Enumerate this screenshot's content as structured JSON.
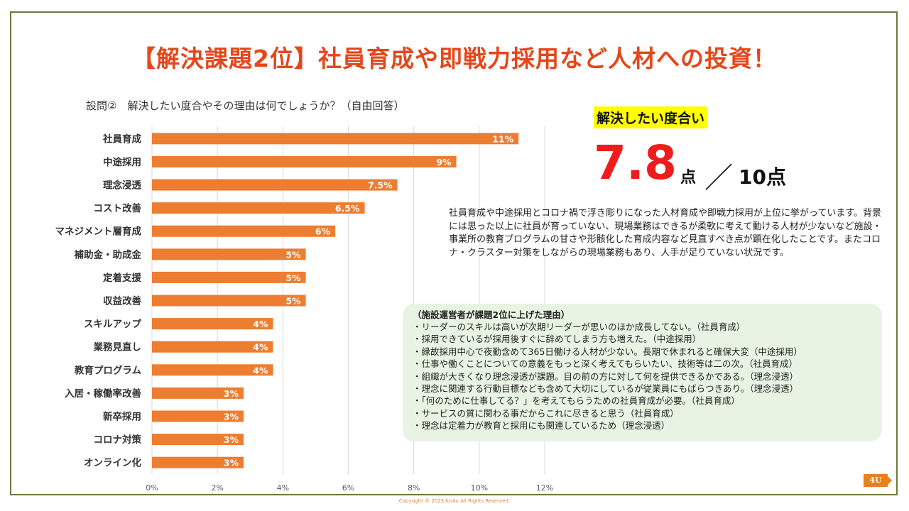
{
  "title": "【解決課題2位】社員育成や即戦力採用など人材への投資！",
  "question": "設問②　解決したい度合やその理由は何でしょうか？（自由回答）",
  "chart_data": {
    "type": "bar",
    "orientation": "horizontal",
    "categories": [
      "社員育成",
      "中途採用",
      "理念浸透",
      "コスト改善",
      "マネジメント層育成",
      "補助金・助成金",
      "定着支援",
      "収益改善",
      "スキルアップ",
      "業務見直し",
      "教育プログラム",
      "入居・稼働率改善",
      "新卒採用",
      "コロナ対策",
      "オンライン化"
    ],
    "values": [
      11.2,
      9.3,
      7.5,
      6.5,
      5.6,
      4.7,
      4.7,
      4.7,
      3.7,
      3.7,
      3.7,
      2.8,
      2.8,
      2.8,
      2.8
    ],
    "data_labels": [
      "11%",
      "9%",
      "7.5%",
      "6.5%",
      "6%",
      "5%",
      "5%",
      "5%",
      "4%",
      "4%",
      "4%",
      "3%",
      "3%",
      "3%",
      "3%"
    ],
    "x_ticks": [
      "0%",
      "2%",
      "4%",
      "6%",
      "8%",
      "10%",
      "12%"
    ],
    "xlim": [
      0,
      12
    ],
    "bar_color": "#ed7d31",
    "grid": true
  },
  "score": {
    "label": "解決したい度合い",
    "value": "7.8",
    "unit": "点",
    "slash": "／",
    "max": "10点"
  },
  "summary": "社員育成や中途採用とコロナ禍で浮き彫りになった人材育成や即戦力採用が上位に挙がっています。背景には思った以上に社員が育っていない、現場業務はできるが柔軟に考えて動ける人材が少ないなど施設・事業所の教育プログラムの甘さや形骸化した育成内容など見直すべき点が顕在化したことです。またコロナ・クラスター対策をしながらの現場業務もあり、人手が足りていない状況です。",
  "reasons": {
    "title": "（施設運営者が課題2位に上げた理由）",
    "items": [
      "・リーダーのスキルは高いが次期リーダーが思いのほか成長してない。（社員育成）",
      "・採用できているが採用後すぐに辞めてしまう方も増えた。（中途採用）",
      "・縁故採用中心で夜勤含めて365日働ける人材が少ない。長期で休まれると確保大変（中途採用）",
      "・仕事や働くことについての意義をもっと深く考えてもらいたい、技術等は二の次。（社員育成）",
      "・組織が大きくなり理念浸透が課題。目の前の方に対して何を提供できるかである。（理念浸透）",
      "・理念に関連する行動目標なども含めて大切にしているが従業員にもばらつきあり。（理念浸透）",
      "・「何のために仕事してる？」を考えてもらうための社員育成が必要。（社員育成）",
      "・サービスの質に関わる事だからこれに尽きると思う（社員育成）",
      "・理念は定着力が教育と採用にも関連しているため（理念浸透）"
    ]
  },
  "footer": {
    "copyright": "Copyright © 2023 for4u All Rights Reserved.",
    "logo_text": "4U",
    "accent_color": "#e8821e"
  }
}
